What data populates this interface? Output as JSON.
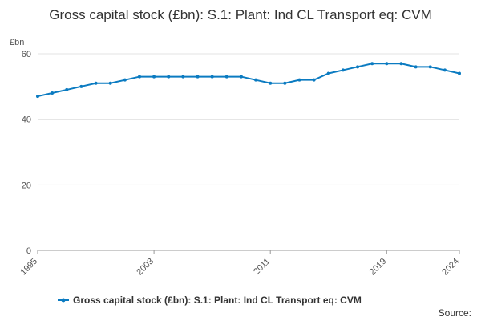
{
  "chart_data": {
    "type": "line",
    "title": "Gross capital stock (£bn): S.1: Plant: Ind CL Transport eq: CVM",
    "y_unit": "£bn",
    "x": [
      1995,
      1996,
      1997,
      1998,
      1999,
      2000,
      2001,
      2002,
      2003,
      2004,
      2005,
      2006,
      2007,
      2008,
      2009,
      2010,
      2011,
      2012,
      2013,
      2014,
      2015,
      2016,
      2017,
      2018,
      2019,
      2020,
      2021,
      2022,
      2023,
      2024
    ],
    "series": [
      {
        "name": "Gross capital stock (£bn): S.1: Plant: Ind CL Transport eq: CVM",
        "color": "#0b7bc1",
        "values": [
          47,
          48,
          49,
          50,
          51,
          51,
          52,
          53,
          53,
          53,
          53,
          53,
          53,
          53,
          53,
          52,
          51,
          51,
          52,
          52,
          54,
          55,
          56,
          57,
          57,
          57,
          56,
          56,
          55,
          54
        ]
      }
    ],
    "xlim": [
      1995,
      2024
    ],
    "xticks": [
      1995,
      2003,
      2011,
      2019,
      2024
    ],
    "ylim": [
      0,
      60
    ],
    "yticks": [
      0,
      20,
      40,
      60
    ],
    "grid": true,
    "source": "Source:"
  }
}
